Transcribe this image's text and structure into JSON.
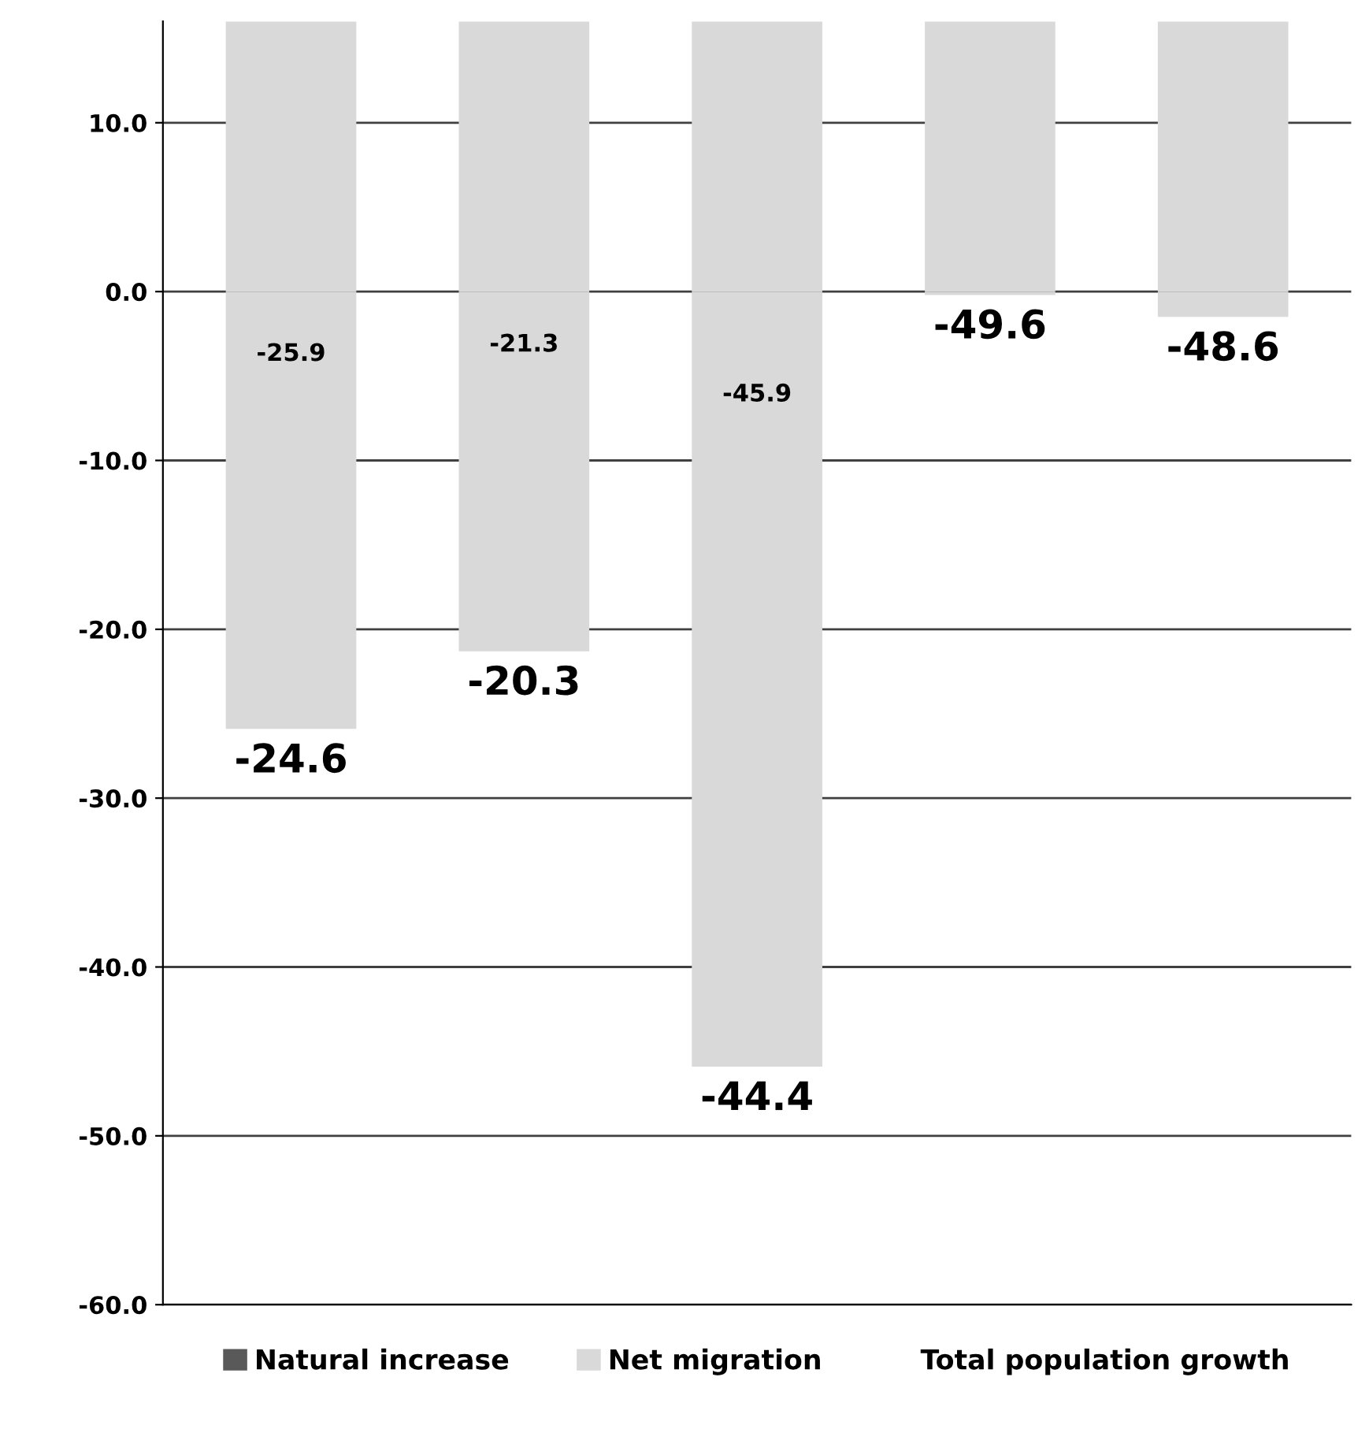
{
  "chart_data": {
    "type": "bar",
    "stacked": true,
    "categories": [
      null,
      null,
      null,
      null,
      null
    ],
    "series": [
      {
        "name": "Natural increase",
        "color": "#595959",
        "values": [
          null,
          null,
          null,
          null,
          null
        ]
      },
      {
        "name": "Net migration",
        "color": "#d9d9d9",
        "values": [
          -25.9,
          -21.3,
          -45.9,
          -0.2,
          -1.5
        ],
        "value_labels": [
          "-25.9",
          "-21.3",
          "-45.9",
          null,
          null
        ]
      },
      {
        "color": "#d9d9d9",
        "values": [
          16,
          16,
          16,
          16,
          16
        ]
      },
      {
        "name": "Total population growth",
        "values": [
          null,
          null,
          null,
          null,
          null
        ]
      }
    ],
    "annotations": [
      "-24.6",
      "-20.3",
      "-44.4",
      "-49.6",
      "-48.6"
    ],
    "ylim": [
      -60,
      16
    ],
    "yticks": [
      {
        "value": 10,
        "label": "10.0"
      },
      {
        "value": 0,
        "label": "0.0"
      },
      {
        "value": -10,
        "label": "-10.0"
      },
      {
        "value": -20,
        "label": "-20.0"
      },
      {
        "value": -30,
        "label": "-30.0"
      },
      {
        "value": -40,
        "label": "-40.0"
      },
      {
        "value": -50,
        "label": "-50.0"
      },
      {
        "value": -60,
        "label": "-60.0"
      }
    ],
    "grid": "y",
    "legend": "bottom"
  }
}
